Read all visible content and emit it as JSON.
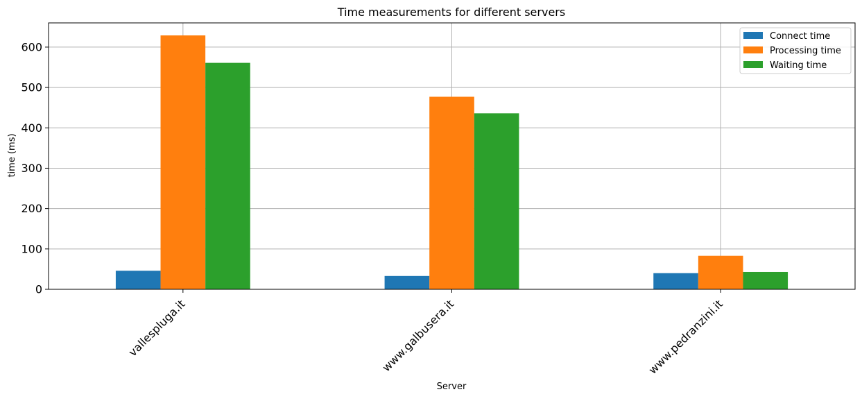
{
  "chart_data": {
    "type": "bar",
    "title": "Time measurements for different servers",
    "xlabel": "Server",
    "ylabel": "time (ms)",
    "categories": [
      "vallespluga.it",
      "www.galbusera.it",
      "www.pedranzini.it"
    ],
    "series": [
      {
        "name": "Connect time",
        "color": "#1f77b4",
        "values": [
          46,
          33,
          40
        ]
      },
      {
        "name": "Processing time",
        "color": "#ff7f0e",
        "values": [
          629,
          477,
          83
        ]
      },
      {
        "name": "Waiting time",
        "color": "#2ca02c",
        "values": [
          561,
          436,
          43
        ]
      }
    ],
    "ylim": [
      0,
      660
    ],
    "yticks": [
      0,
      100,
      200,
      300,
      400,
      500,
      600
    ],
    "grid": true,
    "legend_position": "top-right",
    "xtick_rotation_deg": 45
  }
}
